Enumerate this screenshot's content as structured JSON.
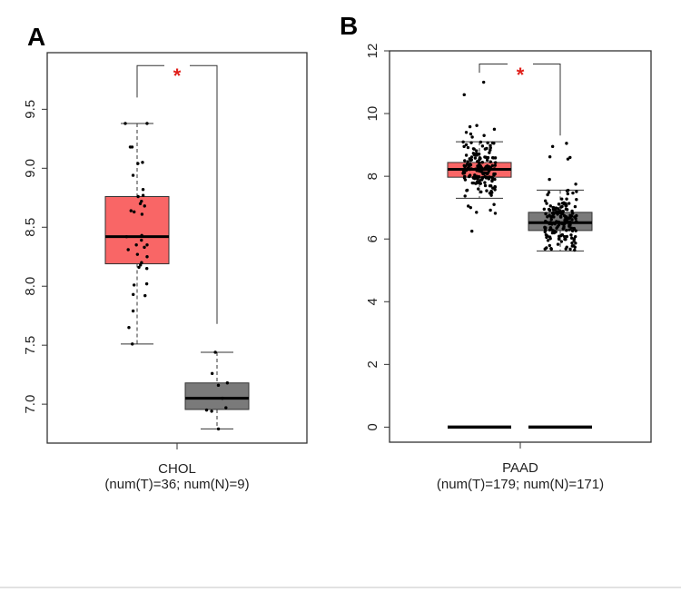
{
  "chart_data": [
    {
      "type": "box",
      "panel_label": "A",
      "category": "CHOL",
      "sample_counts_label": "(num(T)=36; num(N)=9)",
      "ylim": [
        6.67,
        9.98
      ],
      "yticks": [
        "7.0",
        "7.5",
        "8.0",
        "8.5",
        "9.0",
        "9.5"
      ],
      "significance": "*",
      "grid": false,
      "series": [
        {
          "group": "T",
          "color": "#f96666",
          "q1": 8.19,
          "median": 8.42,
          "q3": 8.76,
          "whisker_low": 7.51,
          "whisker_high": 9.38,
          "points": [
            9.38,
            9.38,
            9.18,
            9.18,
            9.05,
            9.04,
            8.94,
            8.82,
            8.77,
            8.76,
            8.72,
            8.7,
            8.68,
            8.64,
            8.63,
            8.61,
            8.43,
            8.42,
            8.39,
            8.35,
            8.35,
            8.33,
            8.31,
            8.27,
            8.25,
            8.2,
            8.18,
            8.16,
            8.15,
            8.02,
            8.01,
            7.93,
            7.92,
            7.79,
            7.65,
            7.51
          ]
        },
        {
          "group": "N",
          "color": "#7a7a7a",
          "q1": 6.955,
          "median": 7.05,
          "q3": 7.18,
          "whisker_low": 6.79,
          "whisker_high": 7.44,
          "points": [
            7.44,
            7.26,
            7.18,
            7.16,
            7.05,
            6.97,
            6.95,
            6.94,
            6.79
          ]
        }
      ],
      "bracket": {
        "left_value": 9.6,
        "right_value": 7.68,
        "top_value": 9.87
      }
    },
    {
      "type": "box",
      "panel_label": "B",
      "category": "PAAD",
      "sample_counts_label": "(num(T)=179; num(N)=171)",
      "ylim": [
        -0.48,
        12
      ],
      "yticks": [
        "0",
        "2",
        "4",
        "6",
        "8",
        "10",
        "12"
      ],
      "significance": "*",
      "grid": false,
      "series": [
        {
          "group": "T",
          "color": "#f96666",
          "n": 179,
          "q1": 7.97,
          "median": 8.22,
          "q3": 8.44,
          "whisker_low": 7.3,
          "whisker_high": 9.1,
          "outliers": [
            11.0,
            10.6,
            9.62,
            9.58,
            9.5,
            9.4,
            9.35,
            9.3,
            9.25,
            7.1,
            7.05,
            7.0,
            6.92,
            6.85,
            6.82,
            6.25
          ],
          "zero_line": 0
        },
        {
          "group": "N",
          "color": "#7a7a7a",
          "n": 171,
          "q1": 6.27,
          "median": 6.52,
          "q3": 6.85,
          "whisker_low": 5.62,
          "whisker_high": 7.56,
          "outliers": [
            9.05,
            8.95,
            8.62,
            8.6,
            8.55,
            7.9,
            7.75
          ],
          "zero_line": 0
        }
      ],
      "bracket": {
        "left_value": 11.3,
        "right_value": 9.3,
        "top_value": 11.58
      }
    }
  ]
}
